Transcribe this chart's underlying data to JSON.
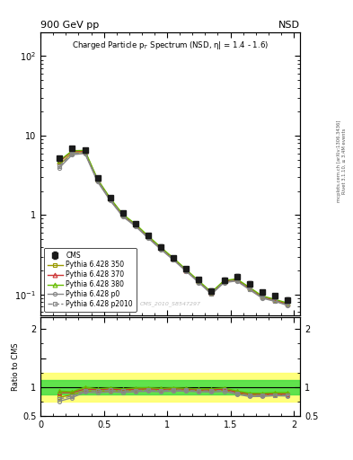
{
  "title_top_left": "900 GeV pp",
  "title_top_right": "NSD",
  "main_title": "Charged Particle p$_T$ Spectrum (NSD, η| = 1.4 - 1.6)",
  "watermark": "CMS_2010_S8547297",
  "ylabel_ratio": "Ratio to CMS",
  "right_label_top": "Rivet 3.1.10, ≥ 3.4M events",
  "right_label_bot": "mcplots.cern.ch [arXiv:1306.3436]",
  "xlim": [
    0.0,
    2.05
  ],
  "ylim_main": [
    0.055,
    200
  ],
  "ylim_ratio": [
    0.5,
    2.2
  ],
  "cms_x": [
    0.15,
    0.25,
    0.35,
    0.45,
    0.55,
    0.65,
    0.75,
    0.85,
    0.95,
    1.05,
    1.15,
    1.25,
    1.35,
    1.45,
    1.55,
    1.65,
    1.75,
    1.85,
    1.95
  ],
  "cms_y": [
    5.2,
    7.0,
    6.5,
    2.9,
    1.65,
    1.05,
    0.78,
    0.55,
    0.4,
    0.29,
    0.21,
    0.153,
    0.11,
    0.152,
    0.168,
    0.137,
    0.107,
    0.096,
    0.086
  ],
  "cms_yerr": [
    0.35,
    0.35,
    0.35,
    0.18,
    0.09,
    0.055,
    0.042,
    0.03,
    0.022,
    0.016,
    0.013,
    0.01,
    0.008,
    0.01,
    0.011,
    0.009,
    0.007,
    0.006,
    0.006
  ],
  "py350_y": [
    4.3,
    6.1,
    6.1,
    2.7,
    1.55,
    0.98,
    0.74,
    0.53,
    0.38,
    0.278,
    0.2,
    0.144,
    0.103,
    0.144,
    0.151,
    0.118,
    0.092,
    0.084,
    0.075
  ],
  "py370_y": [
    4.7,
    6.35,
    6.3,
    2.78,
    1.6,
    1.0,
    0.755,
    0.535,
    0.385,
    0.282,
    0.203,
    0.146,
    0.105,
    0.147,
    0.154,
    0.121,
    0.094,
    0.085,
    0.076
  ],
  "py380_y": [
    4.85,
    6.45,
    6.5,
    2.82,
    1.63,
    1.02,
    0.77,
    0.545,
    0.392,
    0.287,
    0.206,
    0.148,
    0.107,
    0.15,
    0.157,
    0.123,
    0.096,
    0.087,
    0.078
  ],
  "pyp0_y": [
    3.95,
    5.75,
    5.95,
    2.62,
    1.52,
    0.955,
    0.72,
    0.512,
    0.369,
    0.271,
    0.196,
    0.141,
    0.101,
    0.141,
    0.148,
    0.115,
    0.09,
    0.082,
    0.073
  ],
  "pyp2010_y": [
    4.15,
    5.95,
    6.12,
    2.7,
    1.565,
    0.98,
    0.735,
    0.522,
    0.376,
    0.276,
    0.199,
    0.143,
    0.103,
    0.144,
    0.15,
    0.117,
    0.092,
    0.083,
    0.074
  ],
  "band_yellow_lo": 0.75,
  "band_yellow_hi": 1.25,
  "band_green_lo": 0.88,
  "band_green_hi": 1.12,
  "color_cms": "#1a1a1a",
  "color_350": "#999900",
  "color_370": "#cc3333",
  "color_380": "#66bb00",
  "color_p0": "#888888",
  "color_p2010": "#888888",
  "color_band_yellow": "#ffff66",
  "color_band_green": "#44dd44"
}
